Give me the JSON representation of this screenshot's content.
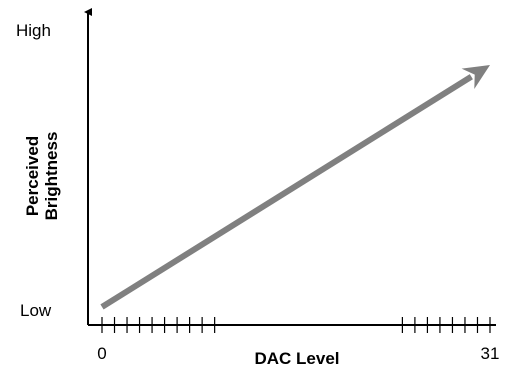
{
  "chart_data": {
    "type": "line",
    "title": "",
    "xlabel": "DAC Level",
    "ylabel_lines": [
      "Perceived",
      "Brightness"
    ],
    "x_tick_labels": [
      "0",
      "31"
    ],
    "y_tick_labels": [
      "Low",
      "High"
    ],
    "xlim": [
      0,
      31
    ],
    "ylim": [
      0,
      1
    ],
    "x_minor_ticks": [
      0,
      1,
      2,
      3,
      4,
      5,
      6,
      7,
      8,
      9,
      24,
      25,
      26,
      27,
      28,
      29,
      30,
      31
    ],
    "series": [
      {
        "x": [
          0,
          31
        ],
        "y": [
          0.02,
          0.98
        ],
        "color": "#808080",
        "arrow_end": true
      }
    ],
    "axis_arrow_top": true,
    "grid": false,
    "legend": "none"
  }
}
